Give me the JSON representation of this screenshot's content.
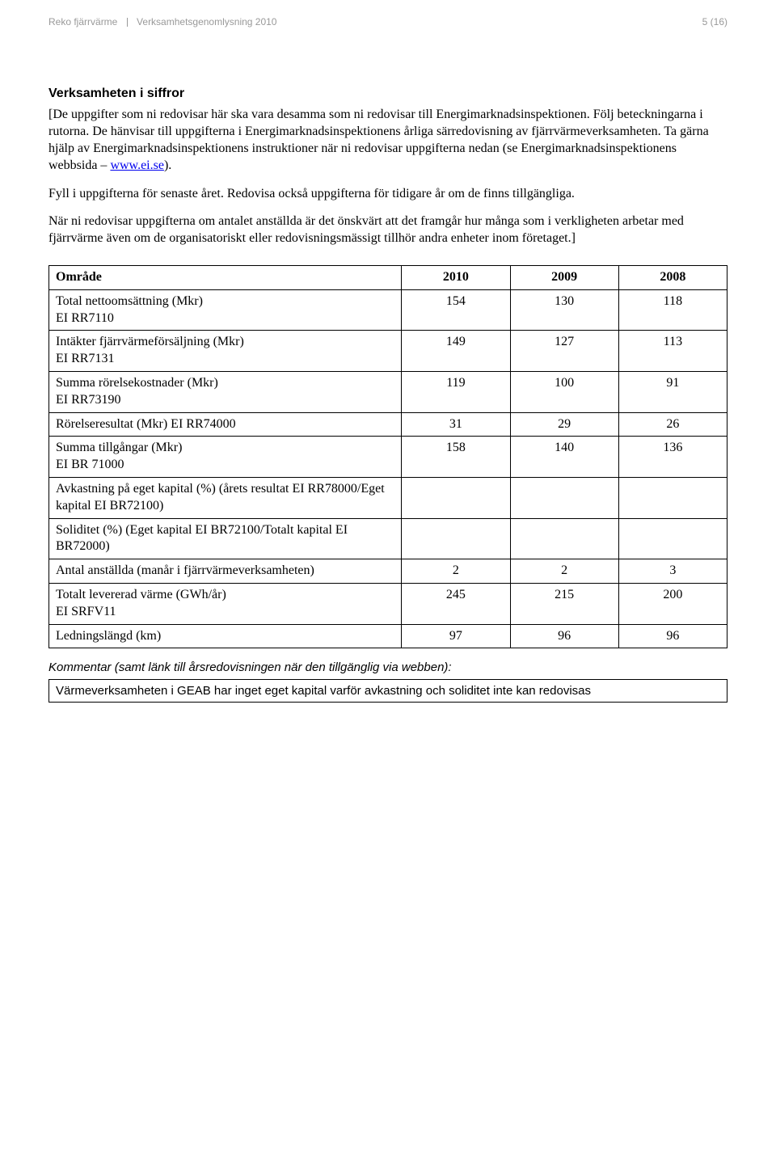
{
  "header": {
    "left1": "Reko fjärrvärme",
    "left2": "Verksamhetsgenomlysning 2010",
    "pagenum": "5 (16)"
  },
  "section_title": "Verksamheten i siffror",
  "para1_a": "[De uppgifter som ni redovisar här ska vara desamma som ni redovisar till Energimarknadsinspektionen. Följ beteckningarna i rutorna. De hänvisar till uppgifterna i Energimarknadsinspektionens årliga särredovisning av fjärrvärmeverksamheten. Ta gärna hjälp av Energimarknadsinspektionens instruktioner när ni redovisar uppgifterna nedan (se Energimarknadsinspektionens webbsida – ",
  "para1_link": "www.ei.se",
  "para1_b": ").",
  "para2": "Fyll i uppgifterna för senaste året. Redovisa också uppgifterna för tidigare år om de finns tillgängliga.",
  "para3": "När ni redovisar uppgifterna om antalet anställda är det önskvärt att det framgår hur många som i verkligheten arbetar med fjärrvärme även om de organisatoriskt eller redovisningsmässigt tillhör andra enheter inom företaget.]",
  "table": {
    "headers": [
      "Område",
      "2010",
      "2009",
      "2008"
    ],
    "col_widths": [
      "52%",
      "16%",
      "16%",
      "16%"
    ],
    "rows": [
      {
        "label": "Total nettoomsättning (Mkr)\nEI RR7110",
        "v": [
          "154",
          "130",
          "118"
        ]
      },
      {
        "label": "Intäkter fjärrvärmeförsäljning (Mkr)\nEI RR7131",
        "v": [
          "149",
          "127",
          "113"
        ]
      },
      {
        "label": "Summa rörelsekostnader (Mkr)\nEI RR73190",
        "v": [
          "119",
          "100",
          "91"
        ]
      },
      {
        "label": "Rörelseresultat (Mkr) EI RR74000",
        "v": [
          "31",
          "29",
          "26"
        ]
      },
      {
        "label": "Summa tillgångar (Mkr)\nEI BR 71000",
        "v": [
          "158",
          "140",
          "136"
        ]
      },
      {
        "label": "Avkastning på eget kapital (%) (årets resultat EI RR78000/Eget kapital EI BR72100)",
        "v": [
          "",
          "",
          ""
        ]
      },
      {
        "label": "Soliditet (%) (Eget kapital EI BR72100/Totalt kapital EI BR72000)",
        "v": [
          "",
          "",
          ""
        ]
      },
      {
        "label": "Antal anställda (manår i fjärrvärmeverksamheten)",
        "v": [
          "2",
          "2",
          "3"
        ]
      },
      {
        "label": "Totalt levererad värme (GWh/år)\nEI SRFV11",
        "v": [
          "245",
          "215",
          "200"
        ]
      },
      {
        "label": "Ledningslängd (km)",
        "v": [
          "97",
          "96",
          "96"
        ]
      }
    ]
  },
  "comment_label": "Kommentar (samt länk till årsredovisningen när den tillgänglig via webben):",
  "comment_text": "Värmeverksamheten i GEAB har inget eget kapital varför avkastning och soliditet inte kan redovisas"
}
